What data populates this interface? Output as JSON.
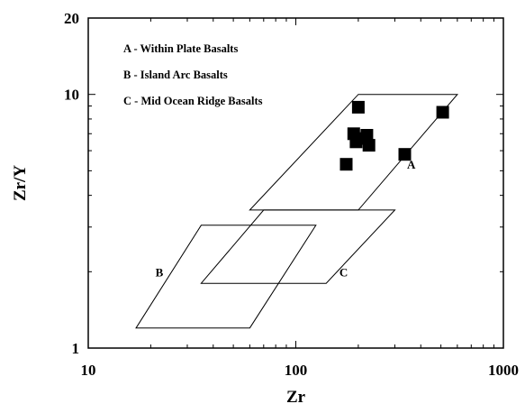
{
  "chart_data": {
    "type": "scatter",
    "xlabel": "Zr",
    "ylabel": "Zr/Y",
    "xscale": "log",
    "yscale": "log",
    "xlim": [
      10,
      1000
    ],
    "ylim": [
      1,
      20
    ],
    "xticks": [
      {
        "value": 10,
        "label": "10"
      },
      {
        "value": 100,
        "label": "100"
      },
      {
        "value": 1000,
        "label": "1000"
      }
    ],
    "yticks": [
      {
        "value": 1,
        "label": "1"
      },
      {
        "value": 10,
        "label": "10"
      },
      {
        "value": 20,
        "label": "20"
      }
    ],
    "grid": false,
    "legend_placement": "top-left",
    "legend": [
      "A - Within Plate Basalts",
      "B - Island Arc Basalts",
      "C - Mid Ocean Ridge Basalts"
    ],
    "fields": [
      {
        "label": "A",
        "polygon": [
          [
            60,
            3.5
          ],
          [
            200,
            10
          ],
          [
            600,
            10
          ],
          [
            200,
            3.5
          ]
        ],
        "label_at": [
          360,
          5.3
        ]
      },
      {
        "label": "B",
        "polygon": [
          [
            17,
            1.2
          ],
          [
            35,
            3.05
          ],
          [
            125,
            3.05
          ],
          [
            60,
            1.2
          ]
        ],
        "label_at": [
          22,
          2.0
        ]
      },
      {
        "label": "C",
        "polygon": [
          [
            35,
            1.8
          ],
          [
            70,
            3.5
          ],
          [
            300,
            3.5
          ],
          [
            140,
            1.8
          ]
        ],
        "label_at": [
          170,
          2.0
        ]
      }
    ],
    "points": [
      {
        "x": 175,
        "y": 5.3
      },
      {
        "x": 190,
        "y": 7.0
      },
      {
        "x": 195,
        "y": 6.5
      },
      {
        "x": 200,
        "y": 8.9
      },
      {
        "x": 215,
        "y": 6.7
      },
      {
        "x": 220,
        "y": 6.9
      },
      {
        "x": 225,
        "y": 6.3
      },
      {
        "x": 335,
        "y": 5.8
      },
      {
        "x": 510,
        "y": 8.5
      }
    ],
    "marker_color": "#000000"
  }
}
